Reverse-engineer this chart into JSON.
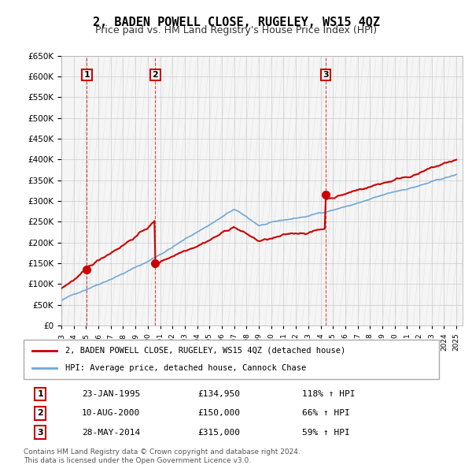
{
  "title": "2, BADEN POWELL CLOSE, RUGELEY, WS15 4QZ",
  "subtitle": "Price paid vs. HM Land Registry's House Price Index (HPI)",
  "ylim": [
    0,
    650000
  ],
  "yticks": [
    0,
    50000,
    100000,
    150000,
    200000,
    250000,
    300000,
    350000,
    400000,
    450000,
    500000,
    550000,
    600000,
    650000
  ],
  "sale_dates_num": [
    1995.07,
    2000.61,
    2014.41
  ],
  "sale_prices": [
    134950,
    150000,
    315000
  ],
  "sale_labels": [
    "1",
    "2",
    "3"
  ],
  "hpi_color": "#6fa8d6",
  "price_color": "#cc0000",
  "sale_marker_color": "#cc0000",
  "legend_price_label": "2, BADEN POWELL CLOSE, RUGELEY, WS15 4QZ (detached house)",
  "legend_hpi_label": "HPI: Average price, detached house, Cannock Chase",
  "table_data": [
    [
      "1",
      "23-JAN-1995",
      "£134,950",
      "118% ↑ HPI"
    ],
    [
      "2",
      "10-AUG-2000",
      "£150,000",
      "66% ↑ HPI"
    ],
    [
      "3",
      "28-MAY-2014",
      "£315,000",
      "59% ↑ HPI"
    ]
  ],
  "footnote": "Contains HM Land Registry data © Crown copyright and database right 2024.\nThis data is licensed under the Open Government Licence v3.0.",
  "bg_color": "#f5f5f5",
  "grid_color": "#cccccc",
  "vline_color": "#cc0000"
}
